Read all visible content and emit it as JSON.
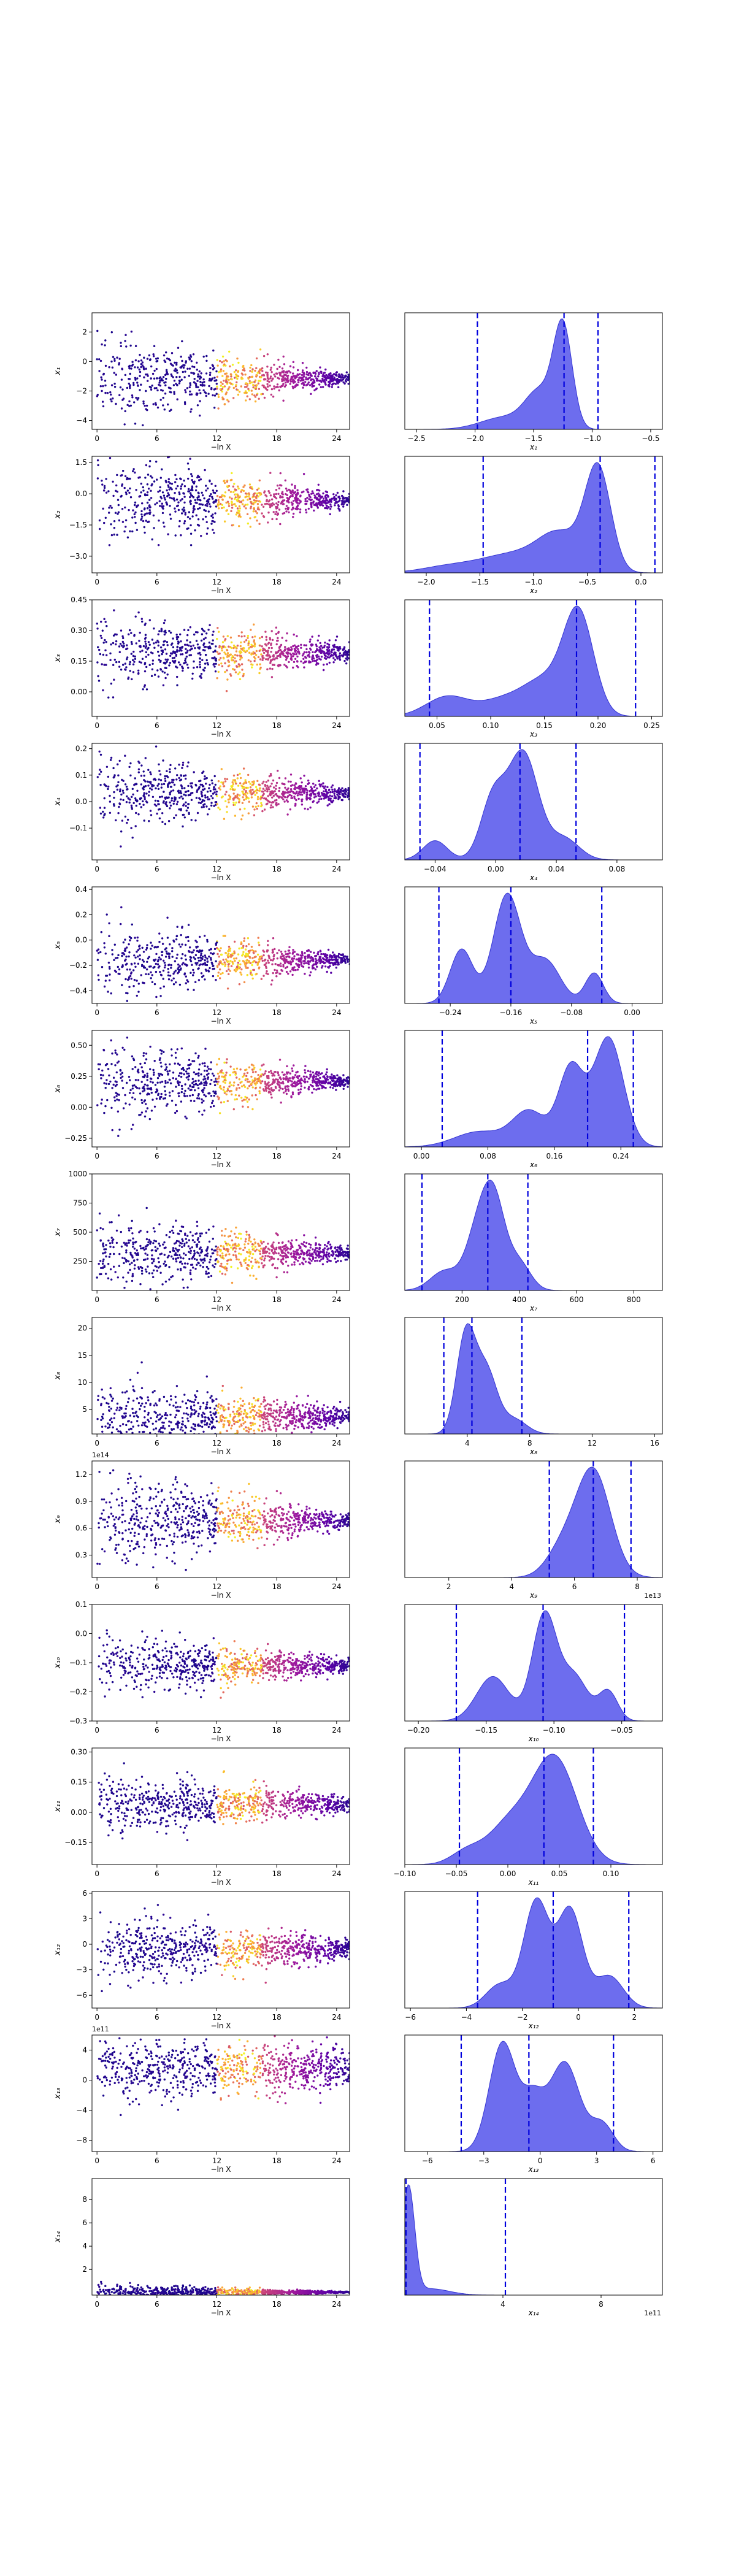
{
  "figure": {
    "colors": {
      "kde_fill": "#6666ee",
      "kde_edge": "#2a2ad0",
      "credible_line": "#0000dd",
      "scatter_colormap": [
        "#0d0887",
        "#5c01a6",
        "#9c179e",
        "#cc4778",
        "#ed7953",
        "#fdb42f",
        "#f0f921"
      ]
    },
    "scatter_x_label": "−ln X",
    "scatter_x_ticks": [
      "0",
      "6",
      "12",
      "18",
      "24"
    ]
  },
  "chart_data": [
    {
      "type": "scatter",
      "param": 1,
      "ylabel": "x₁",
      "ylim": [
        -4.6,
        3.3
      ],
      "y_ticks": [
        {
          "v": 2,
          "label": "2"
        },
        {
          "v": 0,
          "label": "0"
        },
        {
          "v": -2,
          "label": "−2"
        },
        {
          "v": -4,
          "label": "−4"
        }
      ],
      "converged_value": -1.2,
      "initial_spread": 1.5,
      "late_spread": 0.15
    },
    {
      "type": "area",
      "param": 1,
      "xlabel": "x₁",
      "xlim": [
        -2.6,
        -0.4
      ],
      "x_ticks": [
        {
          "v": -2.5,
          "label": "−2.5"
        },
        {
          "v": -2.0,
          "label": "−2.0"
        },
        {
          "v": -1.5,
          "label": "−1.5"
        },
        {
          "v": -1.0,
          "label": "−1.0"
        },
        {
          "v": -0.5,
          "label": "−0.5"
        }
      ],
      "credible_lines": [
        -1.98,
        -1.24,
        -0.95
      ],
      "peaks": [
        {
          "c": -1.25,
          "w": 0.08,
          "h": 1.0
        },
        {
          "c": -1.45,
          "w": 0.12,
          "h": 0.35
        },
        {
          "c": -1.75,
          "w": 0.2,
          "h": 0.12
        }
      ]
    },
    {
      "type": "scatter",
      "param": 2,
      "ylabel": "x₂",
      "ylim": [
        -3.8,
        1.8
      ],
      "y_ticks": [
        {
          "v": 1.5,
          "label": "1.5"
        },
        {
          "v": 0.0,
          "label": "0.0"
        },
        {
          "v": -1.5,
          "label": "−1.5"
        },
        {
          "v": -3.0,
          "label": "−3.0"
        }
      ],
      "converged_value": -0.3,
      "initial_spread": 1.1,
      "late_spread": 0.15
    },
    {
      "type": "area",
      "param": 2,
      "xlabel": "x₂",
      "xlim": [
        -2.2,
        0.2
      ],
      "x_ticks": [
        {
          "v": -2.0,
          "label": "−2.0"
        },
        {
          "v": -1.5,
          "label": "−1.5"
        },
        {
          "v": -1.0,
          "label": "−1.0"
        },
        {
          "v": -0.5,
          "label": "−0.5"
        },
        {
          "v": 0.0,
          "label": "0.0"
        }
      ],
      "credible_lines": [
        -1.47,
        -0.38,
        0.13
      ],
      "peaks": [
        {
          "c": -0.4,
          "w": 0.12,
          "h": 1.0
        },
        {
          "c": -0.75,
          "w": 0.2,
          "h": 0.35
        },
        {
          "c": -1.2,
          "w": 0.3,
          "h": 0.18
        },
        {
          "c": -1.8,
          "w": 0.25,
          "h": 0.06
        }
      ]
    },
    {
      "type": "scatter",
      "param": 3,
      "ylabel": "x₃",
      "ylim": [
        -0.12,
        0.45
      ],
      "y_ticks": [
        {
          "v": 0.45,
          "label": "0.45"
        },
        {
          "v": 0.3,
          "label": "0.30"
        },
        {
          "v": 0.15,
          "label": "0.15"
        },
        {
          "v": 0.0,
          "label": "0.00"
        }
      ],
      "converged_value": 0.19,
      "initial_spread": 0.1,
      "late_spread": 0.02
    },
    {
      "type": "area",
      "param": 3,
      "xlabel": "x₃",
      "xlim": [
        0.02,
        0.26
      ],
      "x_ticks": [
        {
          "v": 0.05,
          "label": "0.05"
        },
        {
          "v": 0.1,
          "label": "0.10"
        },
        {
          "v": 0.15,
          "label": "0.15"
        },
        {
          "v": 0.2,
          "label": "0.20"
        },
        {
          "v": 0.25,
          "label": "0.25"
        }
      ],
      "credible_lines": [
        0.043,
        0.18,
        0.235
      ],
      "peaks": [
        {
          "c": 0.182,
          "w": 0.014,
          "h": 1.0
        },
        {
          "c": 0.15,
          "w": 0.02,
          "h": 0.35
        },
        {
          "c": 0.06,
          "w": 0.02,
          "h": 0.2
        },
        {
          "c": 0.11,
          "w": 0.02,
          "h": 0.15
        }
      ]
    },
    {
      "type": "scatter",
      "param": 4,
      "ylabel": "x₄",
      "ylim": [
        -0.22,
        0.22
      ],
      "y_ticks": [
        {
          "v": 0.2,
          "label": "0.2"
        },
        {
          "v": 0.1,
          "label": "0.1"
        },
        {
          "v": 0.0,
          "label": "0.0"
        },
        {
          "v": -0.1,
          "label": "−0.1"
        }
      ],
      "converged_value": 0.03,
      "initial_spread": 0.07,
      "late_spread": 0.012
    },
    {
      "type": "area",
      "param": 4,
      "xlabel": "x₄",
      "xlim": [
        -0.06,
        0.11
      ],
      "x_ticks": [
        {
          "v": -0.04,
          "label": "−0.04"
        },
        {
          "v": 0.0,
          "label": "0.00"
        },
        {
          "v": 0.04,
          "label": "0.04"
        },
        {
          "v": 0.08,
          "label": "0.08"
        }
      ],
      "credible_lines": [
        -0.05,
        0.016,
        0.053
      ],
      "peaks": [
        {
          "c": 0.018,
          "w": 0.01,
          "h": 1.0
        },
        {
          "c": -0.002,
          "w": 0.008,
          "h": 0.55
        },
        {
          "c": -0.04,
          "w": 0.008,
          "h": 0.18
        },
        {
          "c": 0.045,
          "w": 0.01,
          "h": 0.2
        }
      ]
    },
    {
      "type": "scatter",
      "param": 5,
      "ylabel": "x₅",
      "ylim": [
        -0.5,
        0.42
      ],
      "y_ticks": [
        {
          "v": 0.4,
          "label": "0.4"
        },
        {
          "v": 0.2,
          "label": "0.2"
        },
        {
          "v": 0.0,
          "label": "0.0"
        },
        {
          "v": -0.2,
          "label": "−0.2"
        },
        {
          "v": -0.4,
          "label": "−0.4"
        }
      ],
      "converged_value": -0.16,
      "initial_spread": 0.15,
      "late_spread": 0.02
    },
    {
      "type": "area",
      "param": 5,
      "xlabel": "x₅",
      "xlim": [
        -0.3,
        0.04
      ],
      "x_ticks": [
        {
          "v": -0.24,
          "label": "−0.24"
        },
        {
          "v": -0.16,
          "label": "−0.16"
        },
        {
          "v": -0.08,
          "label": "−0.08"
        },
        {
          "v": 0.0,
          "label": "0.00"
        }
      ],
      "credible_lines": [
        -0.255,
        -0.16,
        -0.04
      ],
      "peaks": [
        {
          "c": -0.165,
          "w": 0.018,
          "h": 1.0
        },
        {
          "c": -0.225,
          "w": 0.015,
          "h": 0.5
        },
        {
          "c": -0.115,
          "w": 0.02,
          "h": 0.4
        },
        {
          "c": -0.05,
          "w": 0.012,
          "h": 0.28
        }
      ]
    },
    {
      "type": "scatter",
      "param": 6,
      "ylabel": "x₆",
      "ylim": [
        -0.32,
        0.62
      ],
      "y_ticks": [
        {
          "v": 0.5,
          "label": "0.50"
        },
        {
          "v": 0.25,
          "label": "0.25"
        },
        {
          "v": 0.0,
          "label": "0.00"
        },
        {
          "v": -0.25,
          "label": "−0.25"
        }
      ],
      "converged_value": 0.21,
      "initial_spread": 0.17,
      "late_spread": 0.02
    },
    {
      "type": "area",
      "param": 6,
      "xlabel": "x₆",
      "xlim": [
        -0.02,
        0.29
      ],
      "x_ticks": [
        {
          "v": 0.0,
          "label": "0.00"
        },
        {
          "v": 0.08,
          "label": "0.08"
        },
        {
          "v": 0.16,
          "label": "0.16"
        },
        {
          "v": 0.24,
          "label": "0.24"
        }
      ],
      "credible_lines": [
        0.025,
        0.2,
        0.255
      ],
      "peaks": [
        {
          "c": 0.225,
          "w": 0.018,
          "h": 1.0
        },
        {
          "c": 0.18,
          "w": 0.015,
          "h": 0.72
        },
        {
          "c": 0.13,
          "w": 0.02,
          "h": 0.32
        },
        {
          "c": 0.07,
          "w": 0.03,
          "h": 0.14
        }
      ]
    },
    {
      "type": "scatter",
      "param": 7,
      "ylabel": "x₇",
      "ylim": [
        0,
        1000
      ],
      "y_ticks": [
        {
          "v": 1000,
          "label": "1000"
        },
        {
          "v": 750,
          "label": "750"
        },
        {
          "v": 500,
          "label": "500"
        },
        {
          "v": 250,
          "label": "250"
        }
      ],
      "converged_value": 320,
      "initial_spread": 170,
      "late_spread": 25
    },
    {
      "type": "area",
      "param": 7,
      "xlabel": "x₇",
      "xlim": [
        0,
        900
      ],
      "x_ticks": [
        {
          "v": 200,
          "label": "200"
        },
        {
          "v": 400,
          "label": "400"
        },
        {
          "v": 600,
          "label": "600"
        },
        {
          "v": 800,
          "label": "800"
        }
      ],
      "credible_lines": [
        60,
        290,
        430
      ],
      "peaks": [
        {
          "c": 310,
          "w": 40,
          "h": 1.0
        },
        {
          "c": 250,
          "w": 40,
          "h": 0.55
        },
        {
          "c": 140,
          "w": 50,
          "h": 0.22
        },
        {
          "c": 400,
          "w": 40,
          "h": 0.3
        }
      ]
    },
    {
      "type": "scatter",
      "param": 8,
      "ylabel": "x₈",
      "ylim": [
        0.5,
        22
      ],
      "y_ticks": [
        {
          "v": 20,
          "label": "20"
        },
        {
          "v": 15,
          "label": "15"
        },
        {
          "v": 10,
          "label": "10"
        },
        {
          "v": 5,
          "label": "5"
        }
      ],
      "converged_value": 3.8,
      "initial_spread": 3.5,
      "late_spread": 0.7
    },
    {
      "type": "area",
      "param": 8,
      "xlabel": "x₈",
      "xlim": [
        0,
        16.5
      ],
      "x_ticks": [
        {
          "v": 4,
          "label": "4"
        },
        {
          "v": 8,
          "label": "8"
        },
        {
          "v": 12,
          "label": "12"
        },
        {
          "v": 16,
          "label": "16"
        }
      ],
      "credible_lines": [
        2.5,
        4.3,
        7.5
      ],
      "peaks": [
        {
          "c": 3.9,
          "w": 0.6,
          "h": 1.0
        },
        {
          "c": 5.2,
          "w": 0.7,
          "h": 0.65
        },
        {
          "c": 7.0,
          "w": 0.8,
          "h": 0.15
        }
      ]
    },
    {
      "type": "scatter",
      "param": 9,
      "ylabel": "x₉",
      "ylim": [
        0.05,
        1.35
      ],
      "y_exponent": "1e14",
      "y_ticks": [
        {
          "v": 1.2,
          "label": "1.2"
        },
        {
          "v": 0.9,
          "label": "0.9"
        },
        {
          "v": 0.6,
          "label": "0.6"
        },
        {
          "v": 0.3,
          "label": "0.3"
        }
      ],
      "converged_value": 0.68,
      "initial_spread": 0.28,
      "late_spread": 0.03
    },
    {
      "type": "area",
      "param": 9,
      "xlabel": "x₉",
      "xlim": [
        0.6,
        8.8
      ],
      "x_exponent": "1e13",
      "x_ticks": [
        {
          "v": 2,
          "label": "2"
        },
        {
          "v": 4,
          "label": "4"
        },
        {
          "v": 6,
          "label": "6"
        },
        {
          "v": 8,
          "label": "8"
        }
      ],
      "credible_lines": [
        5.2,
        6.6,
        7.8
      ],
      "peaks": [
        {
          "c": 6.6,
          "w": 0.55,
          "h": 1.0
        },
        {
          "c": 5.6,
          "w": 0.5,
          "h": 0.25
        }
      ]
    },
    {
      "type": "scatter",
      "param": 10,
      "ylabel": "x₁₀",
      "ylim": [
        -0.3,
        0.1
      ],
      "y_ticks": [
        {
          "v": 0.1,
          "label": "0.1"
        },
        {
          "v": 0.0,
          "label": "0.0"
        },
        {
          "v": -0.1,
          "label": "−0.1"
        },
        {
          "v": -0.2,
          "label": "−0.2"
        },
        {
          "v": -0.3,
          "label": "−0.3"
        }
      ],
      "converged_value": -0.11,
      "initial_spread": 0.055,
      "late_spread": 0.012
    },
    {
      "type": "area",
      "param": 10,
      "xlabel": "x₁₀",
      "xlim": [
        -0.21,
        -0.02
      ],
      "x_ticks": [
        {
          "v": -0.2,
          "label": "−0.20"
        },
        {
          "v": -0.15,
          "label": "−0.15"
        },
        {
          "v": -0.1,
          "label": "−0.10"
        },
        {
          "v": -0.05,
          "label": "−0.05"
        }
      ],
      "credible_lines": [
        -0.172,
        -0.108,
        -0.048
      ],
      "peaks": [
        {
          "c": -0.107,
          "w": 0.009,
          "h": 1.0
        },
        {
          "c": -0.145,
          "w": 0.012,
          "h": 0.42
        },
        {
          "c": -0.085,
          "w": 0.01,
          "h": 0.42
        },
        {
          "c": -0.06,
          "w": 0.007,
          "h": 0.28
        }
      ]
    },
    {
      "type": "scatter",
      "param": 11,
      "ylabel": "x₁₁",
      "ylim": [
        -0.26,
        0.32
      ],
      "y_ticks": [
        {
          "v": 0.3,
          "label": "0.30"
        },
        {
          "v": 0.15,
          "label": "0.15"
        },
        {
          "v": 0.0,
          "label": "0.00"
        },
        {
          "v": -0.15,
          "label": "−0.15"
        }
      ],
      "converged_value": 0.04,
      "initial_spread": 0.08,
      "late_spread": 0.02
    },
    {
      "type": "area",
      "param": 11,
      "xlabel": "x₁₁",
      "xlim": [
        -0.1,
        0.15
      ],
      "x_ticks": [
        {
          "v": -0.1,
          "label": "−0.10"
        },
        {
          "v": -0.05,
          "label": "−0.05"
        },
        {
          "v": 0.0,
          "label": "0.00"
        },
        {
          "v": 0.05,
          "label": "0.05"
        },
        {
          "v": 0.1,
          "label": "0.10"
        }
      ],
      "credible_lines": [
        -0.047,
        0.035,
        0.083
      ],
      "peaks": [
        {
          "c": 0.045,
          "w": 0.022,
          "h": 1.0
        },
        {
          "c": 0.0,
          "w": 0.02,
          "h": 0.35
        },
        {
          "c": -0.04,
          "w": 0.015,
          "h": 0.12
        }
      ]
    },
    {
      "type": "scatter",
      "param": 12,
      "ylabel": "x₁₂",
      "ylim": [
        -7.5,
        6.2
      ],
      "y_ticks": [
        {
          "v": 6,
          "label": "6"
        },
        {
          "v": 3,
          "label": "3"
        },
        {
          "v": 0,
          "label": "0"
        },
        {
          "v": -3,
          "label": "−3"
        },
        {
          "v": -6,
          "label": "−6"
        }
      ],
      "converged_value": -0.6,
      "initial_spread": 2.0,
      "late_spread": 0.6
    },
    {
      "type": "area",
      "param": 12,
      "xlabel": "x₁₂",
      "xlim": [
        -6.2,
        3.0
      ],
      "x_ticks": [
        {
          "v": -6,
          "label": "−6"
        },
        {
          "v": -4,
          "label": "−4"
        },
        {
          "v": -2,
          "label": "−2"
        },
        {
          "v": 0,
          "label": "0"
        },
        {
          "v": 2,
          "label": "2"
        }
      ],
      "credible_lines": [
        -3.6,
        -0.9,
        1.8
      ],
      "peaks": [
        {
          "c": -1.5,
          "w": 0.45,
          "h": 1.0
        },
        {
          "c": -0.3,
          "w": 0.45,
          "h": 0.92
        },
        {
          "c": 1.1,
          "w": 0.5,
          "h": 0.3
        },
        {
          "c": -2.8,
          "w": 0.5,
          "h": 0.22
        }
      ]
    },
    {
      "type": "scatter",
      "param": 13,
      "ylabel": "x₁₃",
      "ylim": [
        -9.5,
        6.0
      ],
      "y_ticks": [
        {
          "v": 4,
          "label": "4"
        },
        {
          "v": 0,
          "label": "0"
        },
        {
          "v": -4,
          "label": "−4"
        },
        {
          "v": -8,
          "label": "−8"
        }
      ],
      "converged_value": 1.5,
      "initial_spread": 2.2,
      "late_spread": 1.4,
      "y_exponent": "1e11"
    },
    {
      "type": "area",
      "param": 13,
      "xlabel": "x₁₃",
      "xlim": [
        -7.2,
        6.5
      ],
      "x_ticks": [
        {
          "v": -6,
          "label": "−6"
        },
        {
          "v": -3,
          "label": "−3"
        },
        {
          "v": 0,
          "label": "0"
        },
        {
          "v": 3,
          "label": "3"
        },
        {
          "v": 6,
          "label": "6"
        }
      ],
      "credible_lines": [
        -4.2,
        -0.6,
        3.9
      ],
      "peaks": [
        {
          "c": -2.0,
          "w": 0.7,
          "h": 1.0
        },
        {
          "c": 1.3,
          "w": 0.8,
          "h": 0.82
        },
        {
          "c": -0.4,
          "w": 0.6,
          "h": 0.45
        },
        {
          "c": 3.3,
          "w": 0.6,
          "h": 0.25
        }
      ]
    },
    {
      "type": "scatter",
      "param": 14,
      "ylabel": "x₁₄",
      "ylim": [
        -0.2,
        9.8
      ],
      "y_ticks": [
        {
          "v": 8,
          "label": "8"
        },
        {
          "v": 6,
          "label": "6"
        },
        {
          "v": 4,
          "label": "4"
        },
        {
          "v": 2,
          "label": "2"
        }
      ],
      "converged_value": 0.05,
      "initial_spread": 0.35,
      "late_spread": 0.02
    },
    {
      "type": "area",
      "param": 14,
      "xlabel": "x₁₄",
      "xlim": [
        0,
        10.5
      ],
      "x_exponent": "1e11",
      "x_ticks": [
        {
          "v": 4,
          "label": "4"
        },
        {
          "v": 8,
          "label": "8"
        }
      ],
      "credible_lines": [
        0.05,
        4.1
      ],
      "peaks": [
        {
          "c": 0.15,
          "w": 0.25,
          "h": 1.0
        },
        {
          "c": 1.0,
          "w": 0.8,
          "h": 0.06
        }
      ]
    }
  ]
}
